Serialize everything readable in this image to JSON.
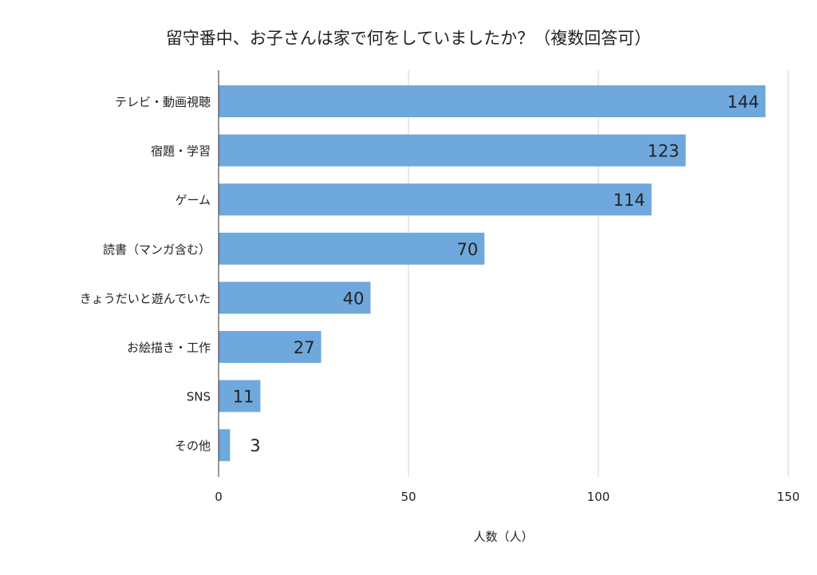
{
  "chart_data": {
    "type": "bar",
    "orientation": "horizontal",
    "title": "留守番中、お子さんは家で何をしていましたか？（複数回答可）",
    "xlabel": "人数（人）",
    "ylabel": "",
    "categories": [
      "テレビ・動画視聴",
      "宿題・学習",
      "ゲーム",
      "読書（マンガ含む）",
      "きょうだいと遊んでいた",
      "お絵描き・工作",
      "SNS",
      "その他"
    ],
    "values": [
      144,
      123,
      114,
      70,
      40,
      27,
      11,
      3
    ],
    "xlim": [
      0,
      150
    ],
    "xticks": [
      "0",
      "50",
      "100",
      "150"
    ],
    "grid": true,
    "data_labels": true,
    "bar_color": "#6fa8dc"
  }
}
